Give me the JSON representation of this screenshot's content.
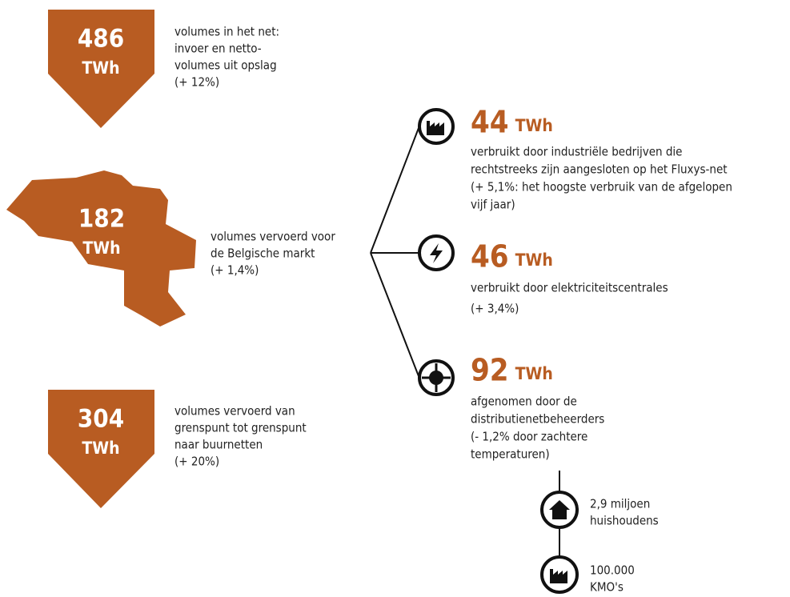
{
  "flows": [
    {
      "value": "486",
      "unit": "TWh",
      "description": [
        "volumes in het net:",
        "invoer en netto-",
        "volumes uit opslag",
        "(+ 12%)"
      ]
    },
    {
      "value": "182",
      "unit": "TWh",
      "description": [
        "volumes vervoerd voor",
        "de Belgische markt",
        "(+ 1,4%)"
      ]
    },
    {
      "value": "304",
      "unit": "TWh",
      "description": [
        "volumes vervoerd van",
        "grenspunt tot grenspunt",
        "naar buurnetten",
        "(+  20%)"
      ]
    }
  ],
  "consumers": [
    {
      "value": "44",
      "unit": "TWh",
      "description": [
        "verbruikt door industriële bedrijven die",
        "rechtstreeks zijn aangesloten op het Fluxys-net",
        "(+ 5,1%: het hoogste verbruik van de afgelopen",
        "vijf jaar)"
      ]
    },
    {
      "value": "46",
      "unit": "TWh",
      "description": [
        "verbruikt door elektriciteitscentrales",
        "(+ 3,4%)"
      ]
    },
    {
      "value": "92",
      "unit": "TWh",
      "description": [
        "afgenomen door de",
        "distributienetbeheerders",
        "(- 1,2% door zachtere",
        "temperaturen)"
      ]
    }
  ],
  "distribution": [
    {
      "label": [
        "2,9 miljoen",
        "huishoudens"
      ]
    },
    {
      "label": [
        "100.000",
        "KMO's"
      ]
    }
  ]
}
